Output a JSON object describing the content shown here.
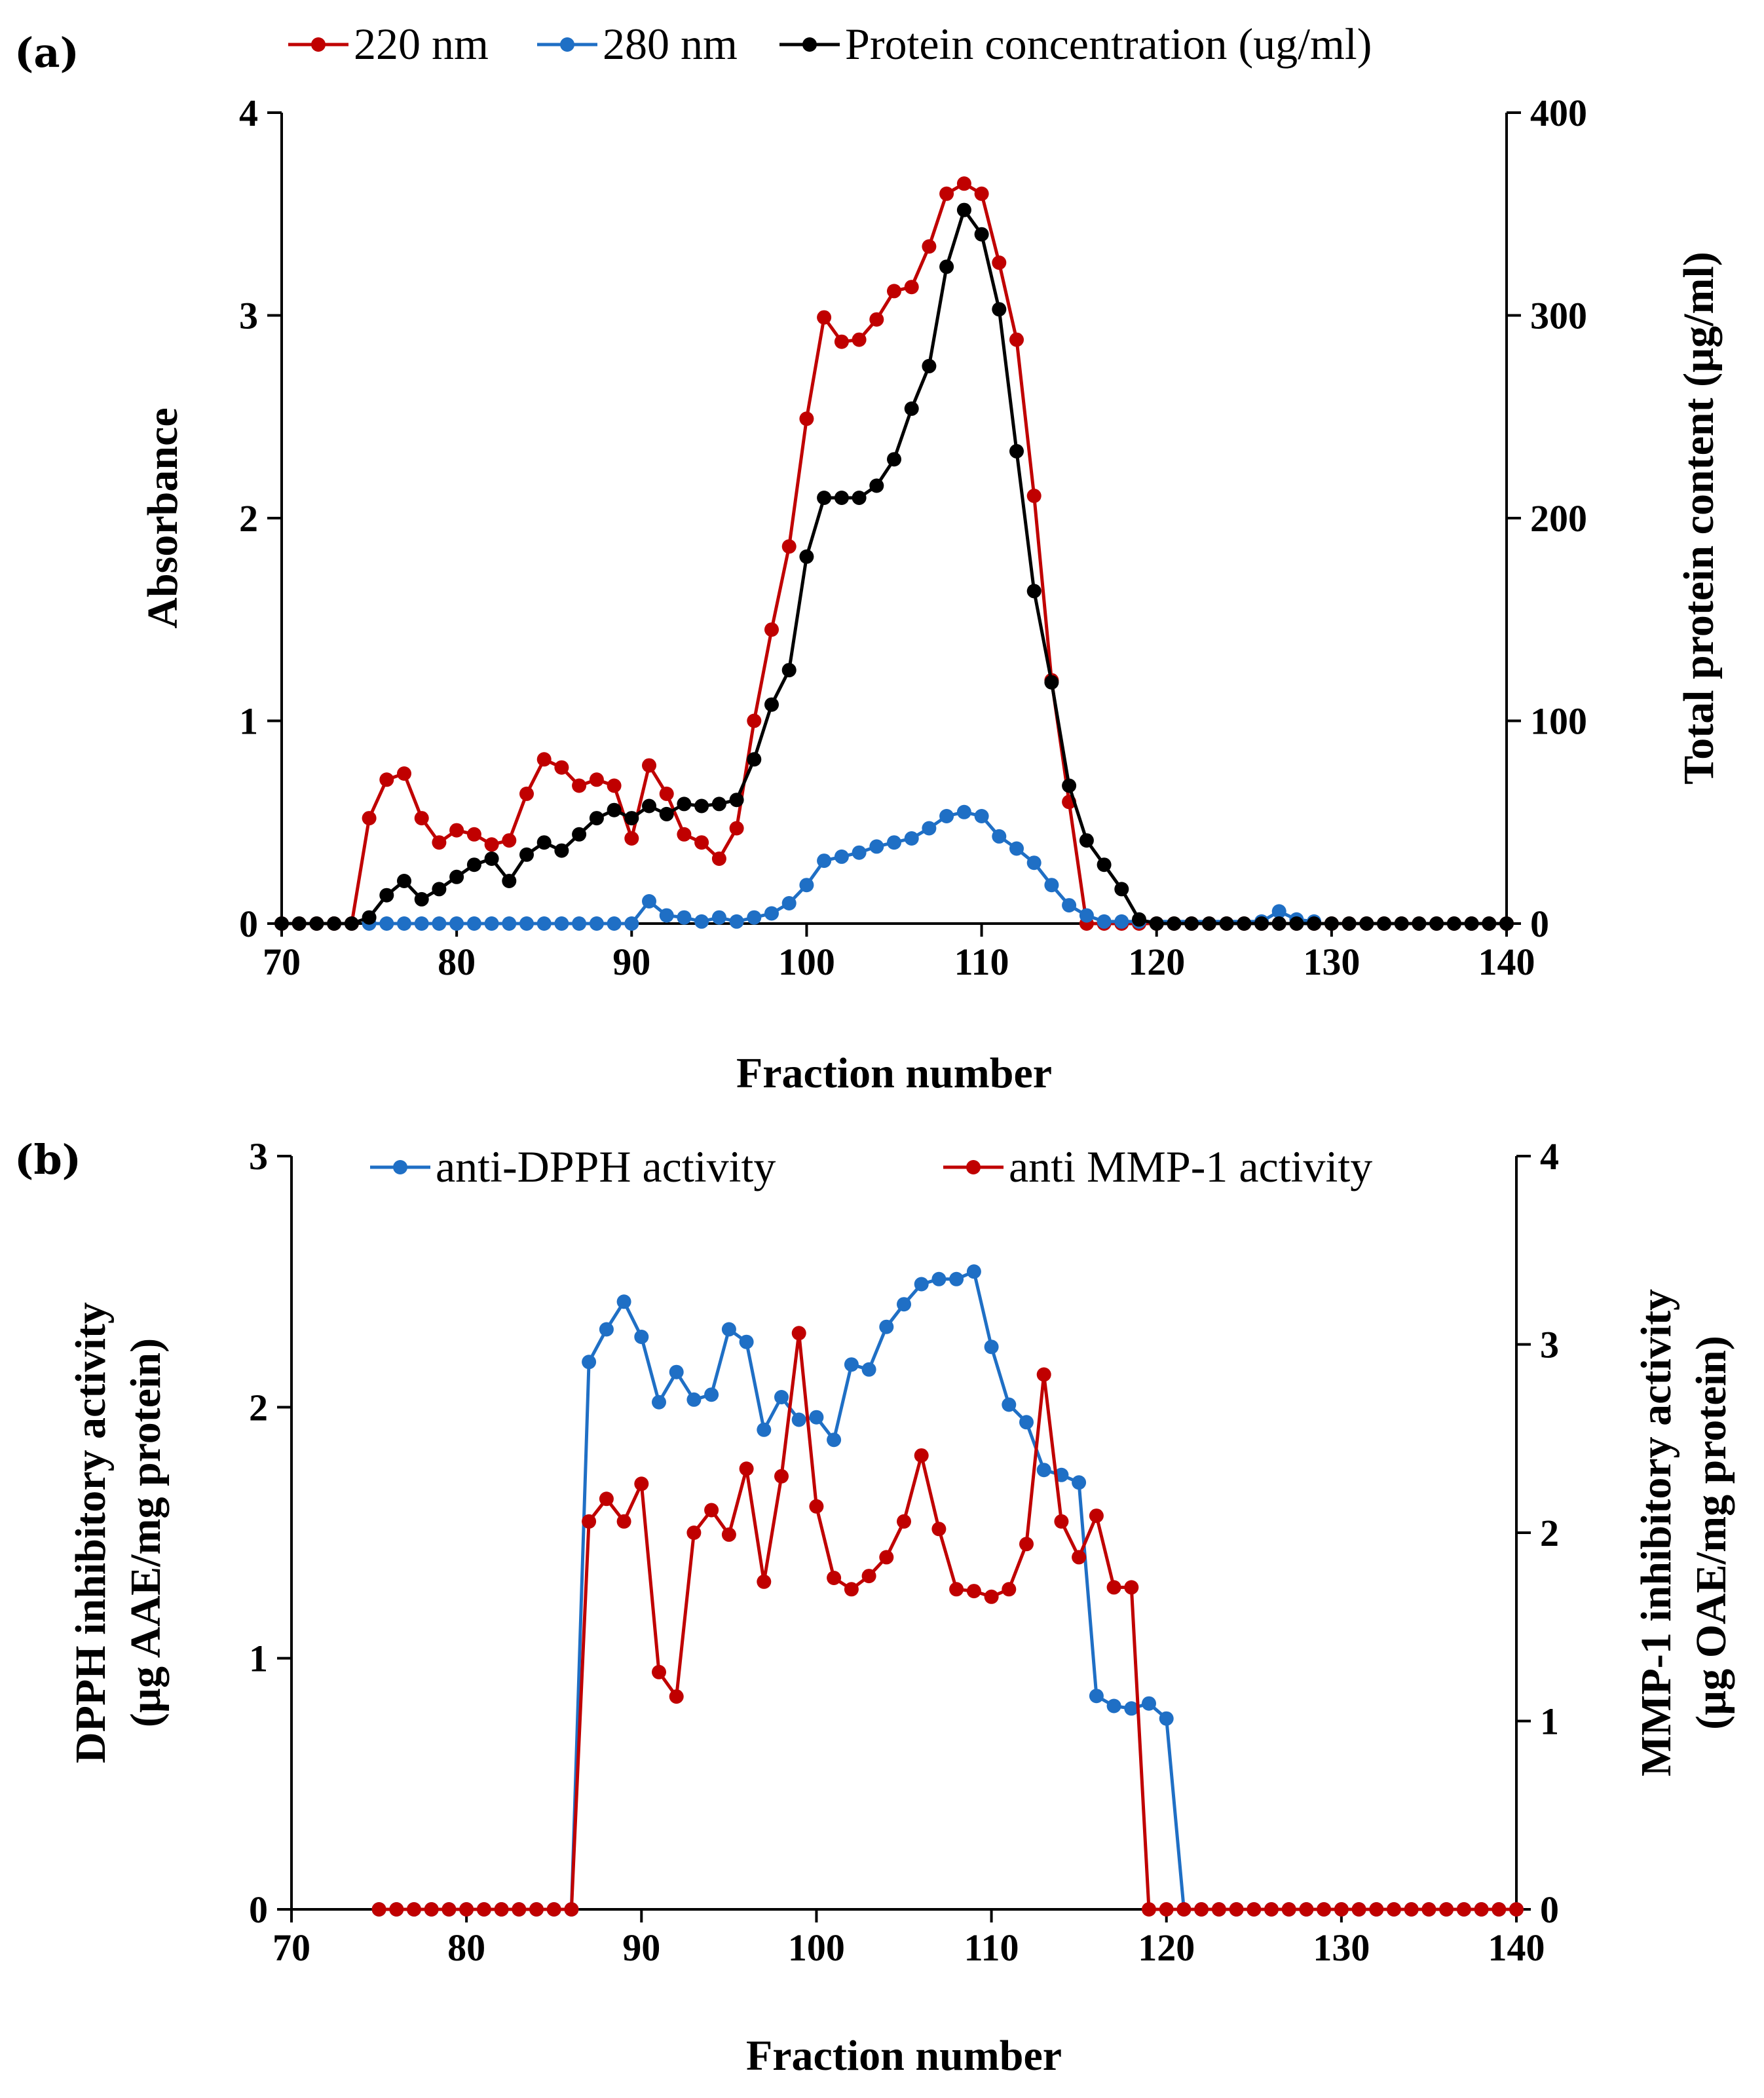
{
  "chart_data": [
    {
      "panel_label": "(a)",
      "type": "line",
      "xlabel": "Fraction number",
      "ylabel": "Absorbance",
      "y2label": "Total protein content (µg/ml)",
      "xlim": [
        70,
        140
      ],
      "ylim": [
        0,
        4
      ],
      "y2lim": [
        0,
        400
      ],
      "xticks": [
        70,
        80,
        90,
        100,
        110,
        120,
        130,
        140
      ],
      "yticks": [
        0,
        1,
        2,
        3,
        4
      ],
      "y2ticks": [
        0,
        100,
        200,
        300,
        400
      ],
      "legend_position": "top",
      "series": [
        {
          "name": "220 nm",
          "color": "#C00000",
          "axis": "left",
          "x": [
            70,
            71,
            72,
            73,
            74,
            75,
            76,
            77,
            78,
            79,
            80,
            81,
            82,
            83,
            84,
            85,
            86,
            87,
            88,
            89,
            90,
            91,
            92,
            93,
            94,
            95,
            96,
            97,
            98,
            99,
            100,
            101,
            102,
            103,
            104,
            105,
            106,
            107,
            108,
            109,
            110,
            111,
            112,
            113,
            114,
            115,
            116,
            117,
            118,
            119,
            120,
            121,
            122,
            123,
            124,
            125,
            126,
            127,
            128,
            129,
            130,
            131,
            132,
            133,
            134,
            135,
            136,
            137,
            138,
            139,
            140
          ],
          "values": [
            0,
            0,
            0,
            0,
            0,
            0.52,
            0.71,
            0.74,
            0.52,
            0.4,
            0.46,
            0.44,
            0.39,
            0.41,
            0.64,
            0.81,
            0.77,
            0.68,
            0.71,
            0.68,
            0.42,
            0.78,
            0.64,
            0.44,
            0.4,
            0.32,
            0.47,
            1.0,
            1.45,
            1.86,
            2.49,
            2.99,
            2.87,
            2.88,
            2.98,
            3.12,
            3.14,
            3.34,
            3.6,
            3.65,
            3.6,
            3.26,
            2.88,
            2.11,
            1.2,
            0.6,
            0,
            0,
            0,
            0,
            0,
            0,
            0,
            0,
            0,
            0,
            0,
            0,
            0,
            0,
            0,
            0,
            0,
            0,
            0,
            0,
            0,
            0,
            0,
            0,
            0
          ]
        },
        {
          "name": "280 nm",
          "color": "#1F6FC5",
          "axis": "left",
          "x": [
            75,
            76,
            77,
            78,
            79,
            80,
            81,
            82,
            83,
            84,
            85,
            86,
            87,
            88,
            89,
            90,
            91,
            92,
            93,
            94,
            95,
            96,
            97,
            98,
            99,
            100,
            101,
            102,
            103,
            104,
            105,
            106,
            107,
            108,
            109,
            110,
            111,
            112,
            113,
            114,
            115,
            116,
            117,
            118,
            119,
            126,
            127,
            128,
            129
          ],
          "values": [
            0,
            0,
            0,
            0,
            0,
            0,
            0,
            0,
            0,
            0,
            0,
            0,
            0,
            0,
            0,
            0,
            0.11,
            0.04,
            0.03,
            0.01,
            0.03,
            0.01,
            0.03,
            0.05,
            0.1,
            0.19,
            0.31,
            0.33,
            0.35,
            0.38,
            0.4,
            0.42,
            0.47,
            0.53,
            0.55,
            0.53,
            0.43,
            0.37,
            0.3,
            0.19,
            0.09,
            0.04,
            0.01,
            0.01,
            0.01,
            0.01,
            0.06,
            0.02,
            0.01
          ]
        },
        {
          "name": "Protein concentration (ug/ml)",
          "color": "#000000",
          "axis": "right",
          "x": [
            70,
            71,
            72,
            73,
            74,
            75,
            76,
            77,
            78,
            79,
            80,
            81,
            82,
            83,
            84,
            85,
            86,
            87,
            88,
            89,
            90,
            91,
            92,
            93,
            94,
            95,
            96,
            97,
            98,
            99,
            100,
            101,
            102,
            103,
            104,
            105,
            106,
            107,
            108,
            109,
            110,
            111,
            112,
            113,
            114,
            115,
            116,
            117,
            118,
            119,
            120,
            121,
            122,
            123,
            124,
            125,
            126,
            127,
            128,
            129,
            130,
            131,
            132,
            133,
            134,
            135,
            136,
            137,
            138,
            139,
            140
          ],
          "values": [
            0,
            0,
            0,
            0,
            0,
            3,
            14,
            21,
            12,
            17,
            23,
            29,
            32,
            21,
            34,
            40,
            36,
            44,
            52,
            56,
            52,
            58,
            54,
            59,
            58,
            59,
            61,
            81,
            108,
            125,
            181,
            210,
            210,
            210,
            216,
            229,
            254,
            275,
            324,
            352,
            340,
            303,
            233,
            164,
            119,
            68,
            41,
            29,
            17,
            2,
            0,
            0,
            0,
            0,
            0,
            0,
            0,
            0,
            0,
            0,
            0,
            0,
            0,
            0,
            0,
            0,
            0,
            0,
            0,
            0,
            0
          ]
        }
      ]
    },
    {
      "panel_label": "(b)",
      "type": "line",
      "xlabel": "Fraction number",
      "ylabel": [
        "DPPH inhibitory activity",
        "(µg AAE/mg protein)"
      ],
      "y2label": [
        "MMP-1 inhibitory activity",
        "(µg OAE/mg protein)"
      ],
      "xlim": [
        70,
        140
      ],
      "ylim": [
        0,
        3
      ],
      "y2lim": [
        0,
        4
      ],
      "xticks": [
        70,
        80,
        90,
        100,
        110,
        120,
        130,
        140
      ],
      "yticks": [
        0,
        1,
        2,
        3
      ],
      "y2ticks": [
        0,
        1,
        2,
        3,
        4
      ],
      "legend_position": "top",
      "series": [
        {
          "name": "anti-DPPH activity",
          "color": "#1F6FC5",
          "axis": "left",
          "x": [
            75,
            76,
            77,
            78,
            79,
            80,
            81,
            82,
            83,
            84,
            85,
            86,
            87,
            88,
            89,
            90,
            91,
            92,
            93,
            94,
            95,
            96,
            97,
            98,
            99,
            100,
            101,
            102,
            103,
            104,
            105,
            106,
            107,
            108,
            109,
            110,
            111,
            112,
            113,
            114,
            115,
            116,
            117,
            118,
            119,
            120,
            121,
            122,
            123,
            124,
            125,
            126,
            127,
            128,
            129,
            130,
            131,
            132,
            133,
            134,
            135,
            136,
            137,
            138,
            139,
            140
          ],
          "values": [
            0,
            0,
            0,
            0,
            0,
            0,
            0,
            0,
            0,
            0,
            0,
            0,
            2.18,
            2.31,
            2.42,
            2.28,
            2.02,
            2.14,
            2.03,
            2.05,
            2.31,
            2.26,
            1.91,
            2.04,
            1.95,
            1.96,
            1.87,
            2.17,
            2.15,
            2.32,
            2.41,
            2.49,
            2.51,
            2.51,
            2.54,
            2.24,
            2.01,
            1.94,
            1.75,
            1.73,
            1.7,
            0.85,
            0.81,
            0.8,
            0.82,
            0.76,
            0,
            0,
            0,
            0,
            0,
            0,
            0,
            0,
            0,
            0,
            0,
            0,
            0,
            0,
            0,
            0,
            0,
            0,
            0,
            0
          ]
        },
        {
          "name": "anti MMP-1 activity",
          "color": "#C00000",
          "axis": "right",
          "x": [
            75,
            76,
            77,
            78,
            79,
            80,
            81,
            82,
            83,
            84,
            85,
            86,
            87,
            88,
            89,
            90,
            91,
            92,
            93,
            94,
            95,
            96,
            97,
            98,
            99,
            100,
            101,
            102,
            103,
            104,
            105,
            106,
            107,
            108,
            109,
            110,
            111,
            112,
            113,
            114,
            115,
            116,
            117,
            118,
            119,
            120,
            121,
            122,
            123,
            124,
            125,
            126,
            127,
            128,
            129,
            130,
            131,
            132,
            133,
            134,
            135,
            136,
            137,
            138,
            139,
            140
          ],
          "values": [
            0,
            0,
            0,
            0,
            0,
            0,
            0,
            0,
            0,
            0,
            0,
            0,
            2.06,
            2.18,
            2.06,
            2.26,
            1.26,
            1.13,
            2.0,
            2.12,
            1.99,
            2.34,
            1.74,
            2.3,
            3.06,
            2.14,
            1.76,
            1.7,
            1.77,
            1.87,
            2.06,
            2.41,
            2.02,
            1.7,
            1.69,
            1.66,
            1.7,
            1.94,
            2.84,
            2.06,
            1.87,
            2.09,
            1.71,
            1.71,
            0,
            0,
            0,
            0,
            0,
            0,
            0,
            0,
            0,
            0,
            0,
            0,
            0,
            0,
            0,
            0,
            0,
            0,
            0,
            0,
            0,
            0
          ]
        }
      ]
    }
  ]
}
